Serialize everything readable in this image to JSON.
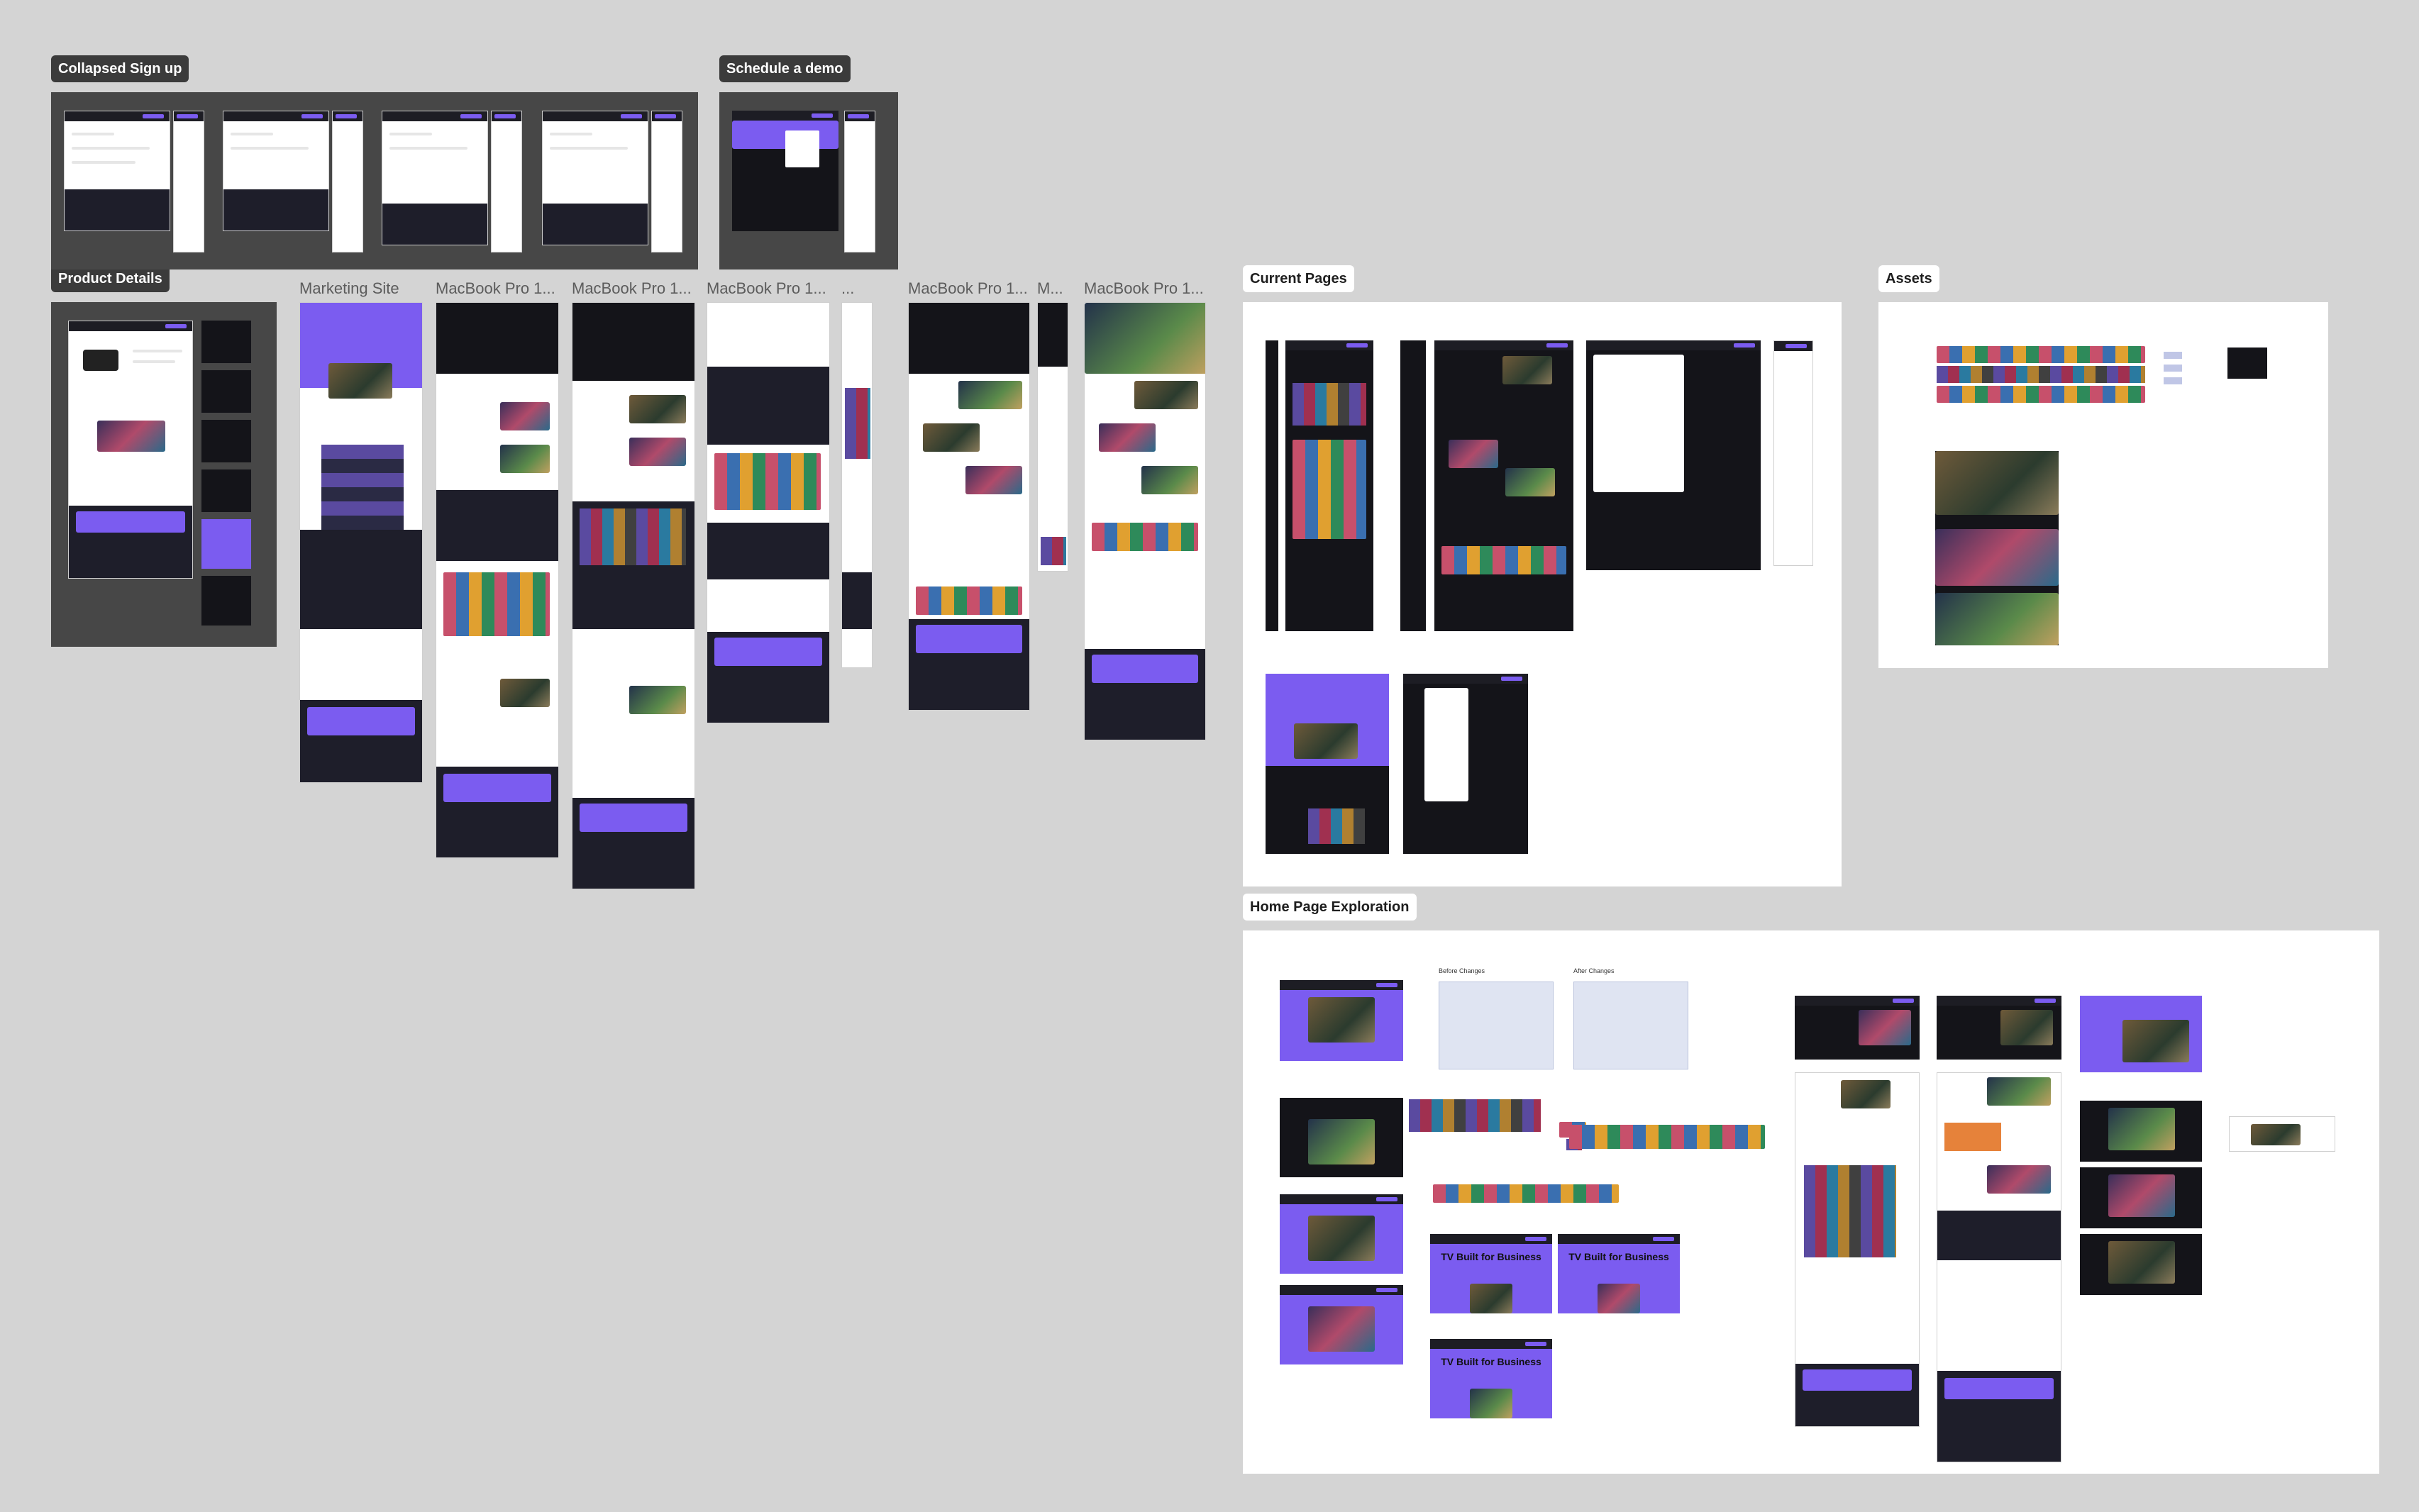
{
  "canvas": {
    "background": "#d4d4d4",
    "accent_purple": "#7b5cf0"
  },
  "sections": {
    "collapsed_signup": "Collapsed Sign up",
    "schedule_demo": "Schedule a demo",
    "product_details": "Product Details",
    "current_pages": "Current Pages",
    "assets": "Assets",
    "home_page_exploration": "Home Page Exploration"
  },
  "frames": {
    "marketing_site": "Marketing Site",
    "macbook_1": "MacBook Pro 1...",
    "macbook_2": "MacBook Pro 1...",
    "macbook_3": "MacBook Pro 1...",
    "ellipsis": "...",
    "macbook_4": "MacBook Pro 1...",
    "m": "M...",
    "macbook_5": "MacBook Pro 1..."
  },
  "thumb_text": {
    "tv_built": "TV Built for Business",
    "before_changes": "Before Changes",
    "after_changes": "After Changes"
  }
}
